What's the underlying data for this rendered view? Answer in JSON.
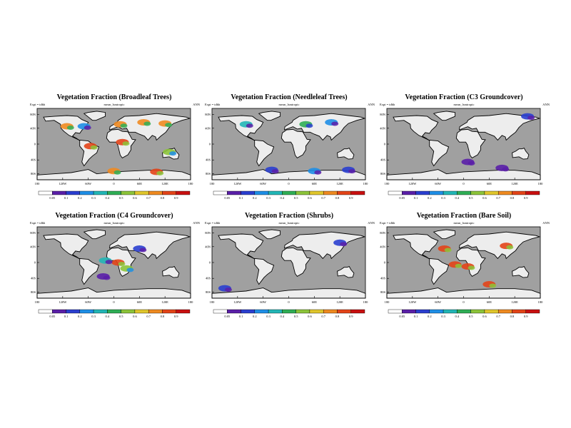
{
  "chart_data": [
    {
      "type": "heatmap",
      "title": "Vegetation Fraction (Broadleaf Trees)",
      "experiment": "Expt = tdbh",
      "model": "mean_lsmtropic",
      "season": "ANN",
      "xticks": [
        "180",
        "120W",
        "60W",
        "0",
        "60E",
        "120E",
        "180"
      ],
      "yticks": [
        "80N",
        "40N",
        "0",
        "40S",
        "80S"
      ],
      "colorbar": {
        "levels": [
          "0.05",
          "0.1",
          "0.2",
          "0.3",
          "0.4",
          "0.5",
          "0.6",
          "0.7",
          "0.8",
          "0.9"
        ],
        "colors": [
          "#ffffff",
          "#5a1fa8",
          "#2a3fcf",
          "#1e8ee6",
          "#22b6b6",
          "#2fae55",
          "#8cc43a",
          "#e0c62c",
          "#ef8a20",
          "#e34418",
          "#c81010"
        ]
      },
      "patches": [
        {
          "lon": 15,
          "lat": 50,
          "level": 8
        },
        {
          "lon": 70,
          "lat": 55,
          "level": 8
        },
        {
          "lon": 120,
          "lat": 52,
          "level": 8
        },
        {
          "lon": -110,
          "lat": 45,
          "level": 8
        },
        {
          "lon": -70,
          "lat": 45,
          "level": 3
        },
        {
          "lon": 20,
          "lat": 5,
          "level": 9
        },
        {
          "lon": -55,
          "lat": -5,
          "level": 9
        },
        {
          "lon": 130,
          "lat": -20,
          "level": 6
        },
        {
          "lon": 0,
          "lat": -68,
          "level": 8
        },
        {
          "lon": 100,
          "lat": -70,
          "level": 9
        }
      ]
    },
    {
      "type": "heatmap",
      "title": "Vegetation Fraction (Needleleaf Trees)",
      "experiment": "Expt = tdbh",
      "model": "mean_lsmtropic",
      "season": "ANN",
      "xticks": [
        "180",
        "120W",
        "60W",
        "0",
        "60E",
        "120E",
        "180"
      ],
      "yticks": [
        "80N",
        "40N",
        "0",
        "40S",
        "80S"
      ],
      "colorbar": {
        "levels": [
          "0.05",
          "0.1",
          "0.2",
          "0.3",
          "0.4",
          "0.5",
          "0.6",
          "0.7",
          "0.8",
          "0.9"
        ],
        "colors": [
          "#ffffff",
          "#5a1fa8",
          "#2a3fcf",
          "#1e8ee6",
          "#22b6b6",
          "#2fae55",
          "#8cc43a",
          "#e0c62c",
          "#ef8a20",
          "#e34418",
          "#c81010"
        ]
      },
      "patches": [
        {
          "lon": 100,
          "lat": 55,
          "level": 3
        },
        {
          "lon": 40,
          "lat": 50,
          "level": 5
        },
        {
          "lon": -100,
          "lat": 50,
          "level": 4
        },
        {
          "lon": -40,
          "lat": -65,
          "level": 2
        },
        {
          "lon": 60,
          "lat": -68,
          "level": 3
        },
        {
          "lon": 140,
          "lat": -65,
          "level": 2
        }
      ]
    },
    {
      "type": "heatmap",
      "title": "Vegetation Fraction (C3 Groundcover)",
      "experiment": "Expt = tdbh",
      "model": "mean_lsmtropic",
      "season": "ANN",
      "xticks": [
        "180",
        "120W",
        "60W",
        "0",
        "60E",
        "120E",
        "180"
      ],
      "yticks": [
        "80N",
        "40N",
        "0",
        "40S",
        "80S"
      ],
      "colorbar": {
        "levels": [
          "0.05",
          "0.1",
          "0.2",
          "0.3",
          "0.4",
          "0.5",
          "0.6",
          "0.7",
          "0.8",
          "0.9"
        ],
        "colors": [
          "#ffffff",
          "#5a1fa8",
          "#2a3fcf",
          "#1e8ee6",
          "#22b6b6",
          "#2fae55",
          "#8cc43a",
          "#e0c62c",
          "#ef8a20",
          "#e34418",
          "#c81010"
        ]
      },
      "patches": [
        {
          "lon": 150,
          "lat": 70,
          "level": 2
        },
        {
          "lon": 10,
          "lat": -45,
          "level": 1
        },
        {
          "lon": 90,
          "lat": -60,
          "level": 1
        }
      ]
    },
    {
      "type": "heatmap",
      "title": "Vegetation Fraction (C4 Groundcover)",
      "experiment": "Expt = tdbh",
      "model": "mean_lsmtropic",
      "season": "ANN",
      "xticks": [
        "180",
        "120W",
        "60W",
        "0",
        "60E",
        "120E",
        "180"
      ],
      "yticks": [
        "80N",
        "40N",
        "0",
        "40S",
        "80S"
      ],
      "colorbar": {
        "levels": [
          "0.05",
          "0.1",
          "0.2",
          "0.3",
          "0.4",
          "0.5",
          "0.6",
          "0.7",
          "0.8",
          "0.9"
        ],
        "colors": [
          "#ffffff",
          "#5a1fa8",
          "#2a3fcf",
          "#1e8ee6",
          "#22b6b6",
          "#2fae55",
          "#8cc43a",
          "#e0c62c",
          "#ef8a20",
          "#e34418",
          "#c81010"
        ]
      },
      "patches": [
        {
          "lon": 10,
          "lat": 0,
          "level": 9
        },
        {
          "lon": -20,
          "lat": 5,
          "level": 4
        },
        {
          "lon": 30,
          "lat": -15,
          "level": 6
        },
        {
          "lon": 60,
          "lat": 35,
          "level": 2
        },
        {
          "lon": -25,
          "lat": -35,
          "level": 1
        }
      ]
    },
    {
      "type": "heatmap",
      "title": "Vegetation Fraction (Shrubs)",
      "experiment": "Expt = tdbh",
      "model": "mean_lsmtropic",
      "season": "ANN",
      "xticks": [
        "180",
        "120W",
        "60W",
        "0",
        "60E",
        "120E",
        "180"
      ],
      "yticks": [
        "80N",
        "40N",
        "0",
        "40S",
        "80S"
      ],
      "colorbar": {
        "levels": [
          "0.05",
          "0.1",
          "0.2",
          "0.3",
          "0.4",
          "0.5",
          "0.6",
          "0.7",
          "0.8",
          "0.9"
        ],
        "colors": [
          "#ffffff",
          "#5a1fa8",
          "#2a3fcf",
          "#1e8ee6",
          "#22b6b6",
          "#2fae55",
          "#8cc43a",
          "#e0c62c",
          "#ef8a20",
          "#e34418",
          "#c81010"
        ]
      },
      "patches": [
        {
          "lon": 120,
          "lat": 50,
          "level": 2
        },
        {
          "lon": -150,
          "lat": -65,
          "level": 2
        }
      ]
    },
    {
      "type": "heatmap",
      "title": "Vegetation Fraction (Bare Soil)",
      "experiment": "Expt = tdbh",
      "model": "mean_lsmtropic",
      "season": "ANN",
      "xticks": [
        "180",
        "120W",
        "60W",
        "0",
        "60E",
        "120E",
        "180"
      ],
      "yticks": [
        "80N",
        "40N",
        "0",
        "40S",
        "80S"
      ],
      "colorbar": {
        "levels": [
          "0.05",
          "0.1",
          "0.2",
          "0.3",
          "0.4",
          "0.5",
          "0.6",
          "0.7",
          "0.8",
          "0.9"
        ],
        "colors": [
          "#ffffff",
          "#5a1fa8",
          "#2a3fcf",
          "#1e8ee6",
          "#22b6b6",
          "#2fae55",
          "#8cc43a",
          "#e0c62c",
          "#ef8a20",
          "#e34418",
          "#c81010"
        ]
      },
      "patches": [
        {
          "lon": 100,
          "lat": 42,
          "level": 9
        },
        {
          "lon": -20,
          "lat": -5,
          "level": 9
        },
        {
          "lon": 10,
          "lat": -10,
          "level": 9
        },
        {
          "lon": -45,
          "lat": 35,
          "level": 9
        },
        {
          "lon": 60,
          "lat": -55,
          "level": 9
        }
      ]
    }
  ]
}
